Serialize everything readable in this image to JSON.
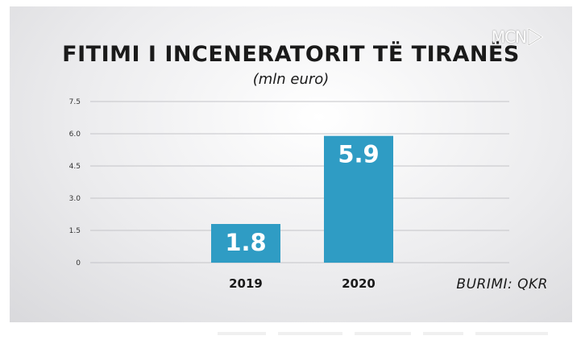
{
  "logo_text": "MCN",
  "chart_data": {
    "type": "bar",
    "title": "FITIMI I INCENERATORIT TË TIRANËS",
    "subtitle": "(mln euro)",
    "categories": [
      "2019",
      "2020"
    ],
    "values": [
      1.8,
      5.9
    ],
    "value_labels": [
      "1.8",
      "5.9"
    ],
    "yticks": [
      "0",
      "1.5",
      "3.0",
      "4.5",
      "6.0",
      "7.5"
    ],
    "ylim": [
      0,
      7.5
    ],
    "grid": true,
    "bar_color": "#2f9cc4",
    "source": "BURIMI: QKR"
  }
}
